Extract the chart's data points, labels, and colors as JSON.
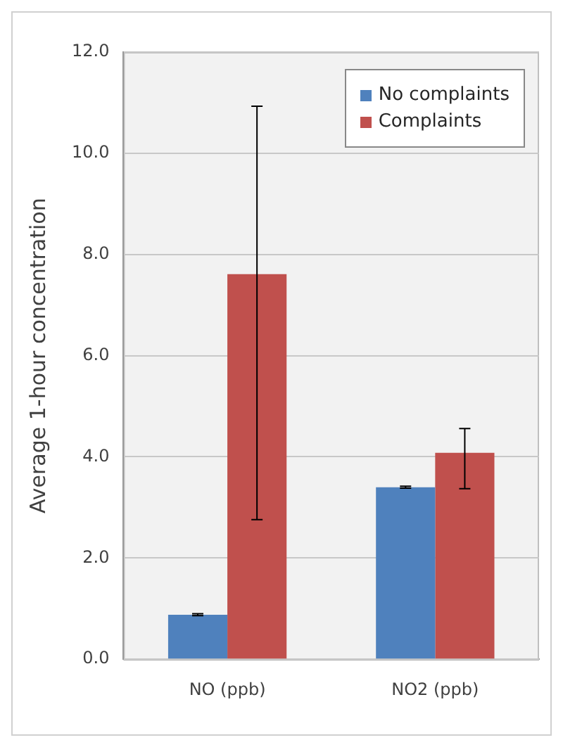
{
  "chart_data": {
    "type": "bar",
    "ylabel": "Average 1-hour concentration",
    "categories": [
      "NO (ppb)",
      "NO2 (ppb)"
    ],
    "series": [
      {
        "name": "No complaints",
        "color": "#4f81bd",
        "values": [
          0.88,
          3.4
        ],
        "errors": [
          0.02,
          0.02
        ]
      },
      {
        "name": "Complaints",
        "color": "#c0504d",
        "values": [
          7.61,
          4.08
        ],
        "errors": [
          [
            2.76,
            10.93
          ],
          [
            3.37,
            4.56
          ]
        ]
      }
    ],
    "ylim": [
      0,
      12
    ],
    "yticks": [
      {
        "value": 0,
        "label": "0.0"
      },
      {
        "value": 2,
        "label": "2.0"
      },
      {
        "value": 4,
        "label": "4.0"
      },
      {
        "value": 6,
        "label": "6.0"
      },
      {
        "value": 8,
        "label": "8.0"
      },
      {
        "value": 10,
        "label": "10.0"
      },
      {
        "value": 12,
        "label": "12.0"
      }
    ],
    "grid": "y",
    "legend": "top right"
  }
}
